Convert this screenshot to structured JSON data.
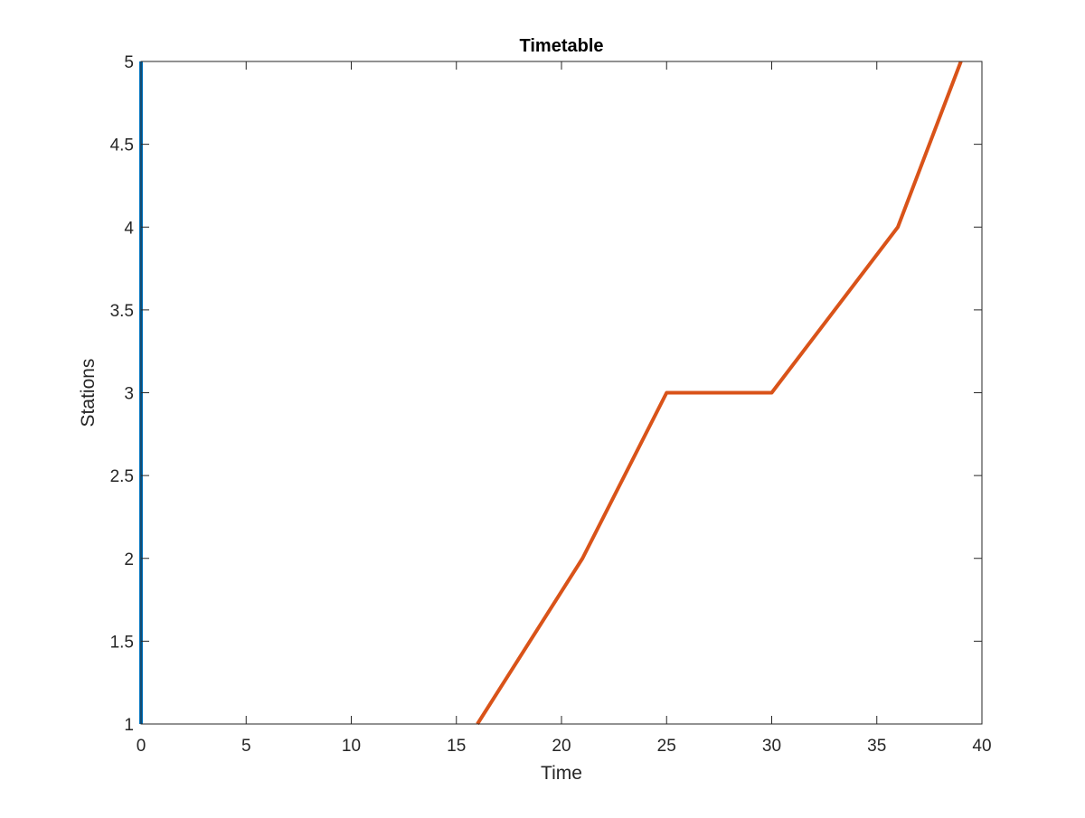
{
  "chart_data": {
    "type": "line",
    "title": "Timetable",
    "xlabel": "Time",
    "ylabel": "Stations",
    "xlim": [
      0,
      40
    ],
    "ylim": [
      1,
      5
    ],
    "xticks": [
      0,
      5,
      10,
      15,
      20,
      25,
      30,
      35,
      40
    ],
    "yticks": [
      1,
      1.5,
      2,
      2.5,
      3,
      3.5,
      4,
      4.5,
      5
    ],
    "xtick_labels": [
      "0",
      "5",
      "10",
      "15",
      "20",
      "25",
      "30",
      "35",
      "40"
    ],
    "ytick_labels": [
      "1",
      "1.5",
      "2",
      "2.5",
      "3",
      "3.5",
      "4",
      "4.5",
      "5"
    ],
    "grid": false,
    "box": true,
    "series": [
      {
        "color": "#0072BD",
        "x": [
          0,
          0
        ],
        "y": [
          1,
          5
        ]
      },
      {
        "color": "#D95319",
        "x": [
          16,
          21,
          25,
          30,
          36,
          39
        ],
        "y": [
          1,
          2,
          3,
          3,
          4,
          5
        ]
      }
    ]
  }
}
